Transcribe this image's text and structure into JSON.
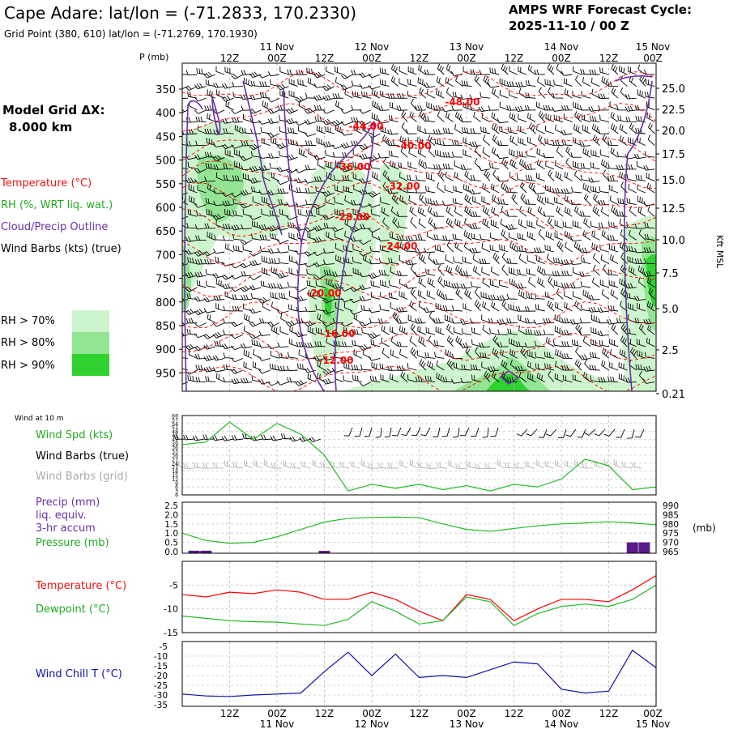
{
  "header": {
    "station_title": "Cape Adare:  lat/lon = (-71.2833, 170.2330)",
    "grid_point": "Grid Point (380, 610) lat/lon = (-71.2769, 170.1930)",
    "forecast_label": "AMPS WRF Forecast Cycle:",
    "forecast_cycle": "2025-11-10 / 00  Z"
  },
  "time_axis": {
    "hour_labels": [
      "12Z",
      "00Z",
      "12Z",
      "00Z",
      "12Z",
      "00Z",
      "12Z",
      "00Z",
      "12Z",
      "00Z"
    ],
    "date_labels": [
      "11 Nov",
      "12 Nov",
      "13 Nov",
      "14 Nov",
      "15 Nov"
    ]
  },
  "left_labels": {
    "model_grid": "Model Grid ΔX:",
    "model_grid_value": "8.000 km",
    "temperature": "Temperature (°C)",
    "rh": "RH (%, WRT liq. wat.)",
    "cloud": "Cloud/Precip Outline",
    "wind_barbs": "Wind Barbs (kts) (true)",
    "rh70": "RH > 70%",
    "rh80": "RH > 80%",
    "rh90": "RH > 90%",
    "wind10m": "Wind at 10 m",
    "wind_spd": "Wind Spd (kts)",
    "wind_barbs_true": "Wind Barbs (true)",
    "wind_barbs_grid": "Wind Barbs (grid)",
    "precip": "Precip (mm)",
    "liq_equiv": "liq. equiv.",
    "accum": "3-hr accum",
    "pressure": "Pressure (mb)",
    "temp2": "Temperature (°C)",
    "dewpoint": "Dewpoint (°C)",
    "windchill": "Wind Chill T (°C)"
  },
  "colors": {
    "temperature": "#ff0000",
    "rh70": "#cdf5cd",
    "rh80": "#93e493",
    "rh90": "#2fd22f",
    "cloud": "#6a2ea8",
    "wind_speed": "#22bb22",
    "dewpoint": "#22bb22",
    "pressure": "#22bb22",
    "windchill": "#1010a8",
    "precip": "#5a1a8a",
    "grid_barbs": "#b0b0b0"
  },
  "chart_data": [
    {
      "type": "line",
      "name": "Cross section",
      "ylabel_left": "P (mb)",
      "ylabel_right": "Kft MSL",
      "pressure_ticks": [
        "350",
        "400",
        "450",
        "500",
        "550",
        "600",
        "650",
        "700",
        "750",
        "800",
        "850",
        "900",
        "950"
      ],
      "height_ticks": [
        "25.0",
        "22.5",
        "20.0",
        "17.5",
        "15.0",
        "12.5",
        "10.0",
        "7.5",
        "5.0",
        "2.5",
        "0.21"
      ],
      "isotherm_labels": [
        "-48.00",
        "-44.00",
        "-40.00",
        "-36.00",
        "-32.00",
        "-28.00",
        "-24.00",
        "-20.00",
        "-16.00",
        "-12.00"
      ]
    },
    {
      "type": "line",
      "name": "Wind Spd (kts)",
      "yticks": [
        "60",
        "57",
        "54",
        "51",
        "48",
        "45",
        "42",
        "39",
        "36",
        "33",
        "30",
        "27",
        "24",
        "21",
        "18",
        "15",
        "12",
        "9",
        "6",
        "3",
        "0"
      ],
      "ylim": [
        0,
        60
      ],
      "x_hours": [
        0,
        6,
        12,
        18,
        24,
        30,
        36,
        42,
        48,
        54,
        60,
        66,
        72,
        78,
        84,
        90,
        96,
        102,
        108,
        114,
        120
      ],
      "values": [
        38,
        40,
        55,
        42,
        54,
        46,
        30,
        3,
        8,
        5,
        8,
        4,
        7,
        3,
        8,
        6,
        12,
        27,
        22,
        4,
        6
      ]
    },
    {
      "type": "line",
      "name": "Precip / Pressure",
      "yticks_left": [
        "2.5",
        "2.0",
        "1.5",
        "1.0",
        "0.5",
        "0.0"
      ],
      "yticks_right": [
        "990",
        "985",
        "980",
        "975",
        "970",
        "965"
      ],
      "unit_right": "(mb)",
      "x_hours": [
        0,
        6,
        12,
        18,
        24,
        30,
        36,
        42,
        48,
        54,
        60,
        66,
        72,
        78,
        84,
        90,
        96,
        102,
        108,
        114,
        120
      ],
      "pressure": [
        975,
        971,
        969.5,
        970,
        973,
        977,
        981,
        983,
        983.5,
        983.7,
        983.4,
        980,
        977,
        976,
        977.5,
        979,
        980,
        980.5,
        981.2,
        980.5,
        979.5
      ],
      "precip_hours": [
        3,
        6,
        36,
        114,
        117
      ],
      "precip_mm": [
        0.05,
        0.05,
        0.04,
        0.5,
        0.5
      ]
    },
    {
      "type": "line",
      "name": "Temperature / Dewpoint",
      "yticks": [
        "-5",
        "-10",
        "-15"
      ],
      "ylim": [
        -15,
        0
      ],
      "x_hours": [
        0,
        6,
        12,
        18,
        24,
        30,
        36,
        42,
        48,
        54,
        60,
        66,
        72,
        78,
        84,
        90,
        96,
        102,
        108,
        114,
        120
      ],
      "temperature": [
        -7,
        -7.5,
        -6.5,
        -6.8,
        -6,
        -6.5,
        -8,
        -8,
        -6.5,
        -8,
        -10.5,
        -12.5,
        -7,
        -8,
        -12.5,
        -10,
        -8,
        -8,
        -8.5,
        -6,
        -3
      ],
      "dewpoint": [
        -11.5,
        -12,
        -12.5,
        -12.7,
        -12.8,
        -13.2,
        -13.5,
        -12.2,
        -8.5,
        -10.5,
        -13.2,
        -12.5,
        -7.5,
        -8.5,
        -13.5,
        -11,
        -9.5,
        -9,
        -9.5,
        -8,
        -5
      ]
    },
    {
      "type": "line",
      "name": "Wind Chill T",
      "yticks": [
        "-5",
        "-10",
        "-15",
        "-20",
        "-25",
        "-30",
        "-35"
      ],
      "ylim": [
        -35,
        -5
      ],
      "x_hours": [
        0,
        6,
        12,
        18,
        24,
        30,
        36,
        42,
        48,
        54,
        60,
        66,
        72,
        78,
        84,
        90,
        96,
        102,
        108,
        114,
        120
      ],
      "values": [
        -29.5,
        -30.5,
        -30.8,
        -30,
        -29.5,
        -29,
        -18,
        -8,
        -20,
        -9,
        -21,
        -20,
        -21,
        -17,
        -13,
        -14,
        -27,
        -29,
        -28,
        -7,
        -16
      ]
    }
  ]
}
